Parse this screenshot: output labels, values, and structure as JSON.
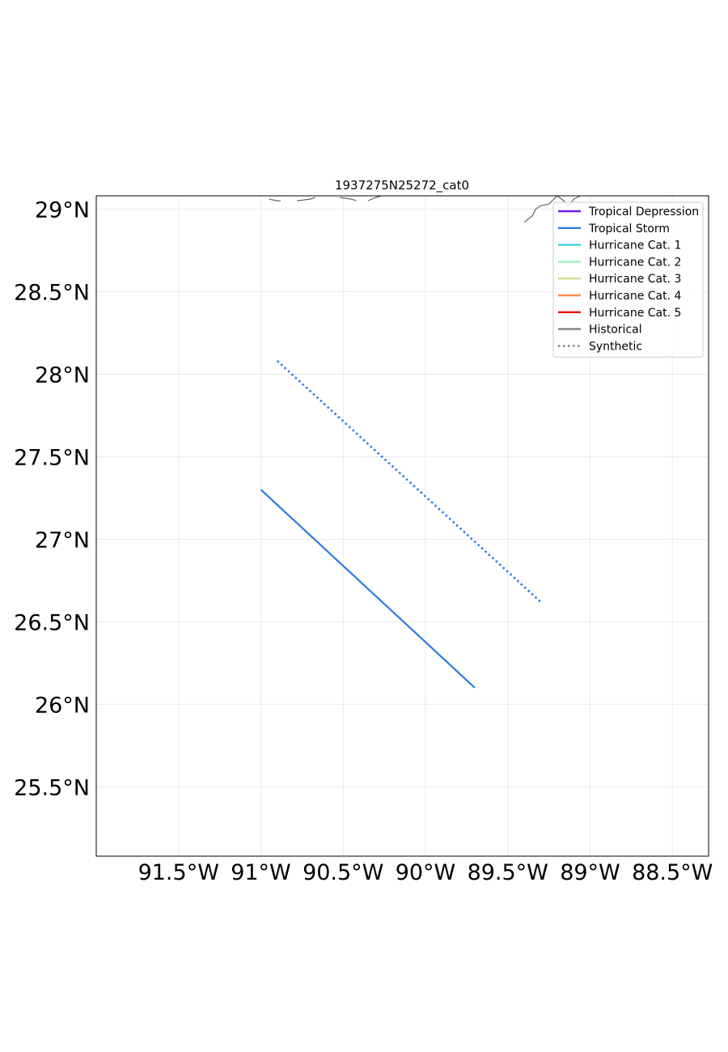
{
  "chart_data": {
    "type": "map",
    "title": "1937275N25272_cat0",
    "xlim": [
      -92.0,
      -88.28
    ],
    "ylim": [
      25.08,
      29.08
    ],
    "x_ticks": [
      {
        "value": -91.5,
        "label": "91.5°W"
      },
      {
        "value": -91.0,
        "label": "91°W"
      },
      {
        "value": -90.5,
        "label": "90.5°W"
      },
      {
        "value": -90.0,
        "label": "90°W"
      },
      {
        "value": -89.5,
        "label": "89.5°W"
      },
      {
        "value": -89.0,
        "label": "89°W"
      },
      {
        "value": -88.5,
        "label": "88.5°W"
      }
    ],
    "y_ticks": [
      {
        "value": 25.5,
        "label": "25.5°N"
      },
      {
        "value": 26.0,
        "label": "26°N"
      },
      {
        "value": 26.5,
        "label": "26.5°N"
      },
      {
        "value": 27.0,
        "label": "27°N"
      },
      {
        "value": 27.5,
        "label": "27.5°N"
      },
      {
        "value": 28.0,
        "label": "28°N"
      },
      {
        "value": 28.5,
        "label": "28.5°N"
      },
      {
        "value": 29.0,
        "label": "29°N"
      }
    ],
    "grid": true,
    "legend_position": "top-right",
    "legend": [
      {
        "label": "Tropical Depression",
        "color": "#7a16d8",
        "style": "solid"
      },
      {
        "label": "Tropical Storm",
        "color": "#2b7be6",
        "style": "solid"
      },
      {
        "label": "Hurricane Cat. 1",
        "color": "#3fd2d8",
        "style": "solid"
      },
      {
        "label": "Hurricane Cat. 2",
        "color": "#92f5b8",
        "style": "solid"
      },
      {
        "label": "Hurricane Cat. 3",
        "color": "#cde08e",
        "style": "solid"
      },
      {
        "label": "Hurricane Cat. 4",
        "color": "#ff8c4f",
        "style": "solid"
      },
      {
        "label": "Hurricane Cat. 5",
        "color": "#e31414",
        "style": "solid"
      },
      {
        "label": "Historical",
        "color": "#808080",
        "style": "solid"
      },
      {
        "label": "Synthetic",
        "color": "#808080",
        "style": "dotted"
      }
    ],
    "tracks": [
      {
        "kind": "historical",
        "category": "Tropical Storm",
        "color": "#2b7be6",
        "style": "solid",
        "points": [
          {
            "lon": -91.0,
            "lat": 27.3
          },
          {
            "lon": -89.7,
            "lat": 26.1
          }
        ]
      },
      {
        "kind": "synthetic",
        "category": "Tropical Storm",
        "color": "#2b7be6",
        "style": "dotted",
        "points": [
          {
            "lon": -90.9,
            "lat": 28.08
          },
          {
            "lon": -89.3,
            "lat": 26.62
          }
        ]
      }
    ],
    "coastline": {
      "color": "#666666",
      "segments": [
        [
          {
            "lon": -90.95,
            "lat": 29.06
          },
          {
            "lon": -90.9,
            "lat": 29.05
          },
          {
            "lon": -90.88,
            "lat": 29.05
          }
        ],
        [
          {
            "lon": -90.78,
            "lat": 29.05
          },
          {
            "lon": -90.7,
            "lat": 29.06
          },
          {
            "lon": -90.67,
            "lat": 29.07
          }
        ],
        [
          {
            "lon": -90.52,
            "lat": 29.07
          },
          {
            "lon": -90.45,
            "lat": 29.06
          },
          {
            "lon": -90.42,
            "lat": 29.05
          }
        ],
        [
          {
            "lon": -90.35,
            "lat": 29.05
          },
          {
            "lon": -90.3,
            "lat": 29.07
          },
          {
            "lon": -90.27,
            "lat": 29.08
          }
        ],
        [
          {
            "lon": -89.4,
            "lat": 28.92
          },
          {
            "lon": -89.35,
            "lat": 28.96
          },
          {
            "lon": -89.33,
            "lat": 29.0
          },
          {
            "lon": -89.3,
            "lat": 29.02
          },
          {
            "lon": -89.25,
            "lat": 29.03
          },
          {
            "lon": -89.22,
            "lat": 29.06
          },
          {
            "lon": -89.2,
            "lat": 29.08
          }
        ],
        [
          {
            "lon": -89.2,
            "lat": 29.08
          },
          {
            "lon": -89.16,
            "lat": 29.05
          },
          {
            "lon": -89.14,
            "lat": 29.02
          },
          {
            "lon": -89.12,
            "lat": 29.03
          },
          {
            "lon": -89.1,
            "lat": 29.06
          },
          {
            "lon": -89.06,
            "lat": 29.08
          }
        ]
      ]
    }
  }
}
